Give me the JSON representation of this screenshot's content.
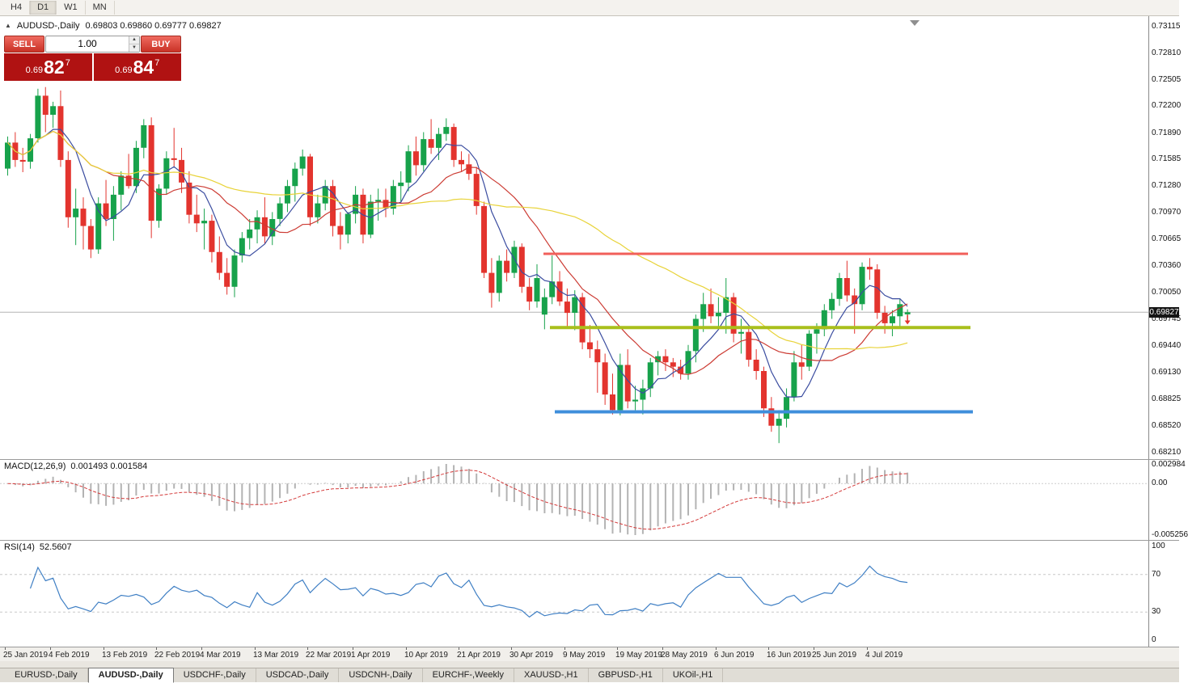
{
  "toolbar": {
    "timeframes": [
      {
        "label": "H4",
        "active": false
      },
      {
        "label": "D1",
        "active": true
      },
      {
        "label": "W1",
        "active": false
      },
      {
        "label": "MN",
        "active": false
      }
    ]
  },
  "chart": {
    "symbol": "AUDUSD-,Daily",
    "ohlc_line": "0.69803 0.69860 0.69777 0.69827",
    "current_price_label": "0.69827",
    "collapse_icon": "▲"
  },
  "one_click": {
    "sell_label": "SELL",
    "buy_label": "BUY",
    "volume": "1.00",
    "spin_up": "▲",
    "spin_down": "▼",
    "sell_price": {
      "small": "0.69",
      "big": "82",
      "sup": "7"
    },
    "buy_price": {
      "small": "0.69",
      "big": "84",
      "sup": "7"
    }
  },
  "chart_data": {
    "type": "candlestick",
    "symbol": "AUDUSD-,Daily",
    "timeframe": "Daily",
    "ohlc_current": {
      "open": 0.69803,
      "high": 0.6986,
      "low": 0.69777,
      "close": 0.69827
    },
    "current_price": 0.69827,
    "ylim": [
      0.6821,
      0.73115
    ],
    "y_ticks": [
      "0.73115",
      "0.72810",
      "0.72505",
      "0.72200",
      "0.71890",
      "0.71585",
      "0.71280",
      "0.70970",
      "0.70665",
      "0.70360",
      "0.70050",
      "0.69745",
      "0.69440",
      "0.69130",
      "0.68825",
      "0.68520",
      "0.68210"
    ],
    "x_labels": [
      {
        "label": "25 Jan 2019",
        "index": 0
      },
      {
        "label": "4 Feb 2019",
        "index": 6
      },
      {
        "label": "13 Feb 2019",
        "index": 13
      },
      {
        "label": "22 Feb 2019",
        "index": 20
      },
      {
        "label": "4 Mar 2019",
        "index": 26
      },
      {
        "label": "13 Mar 2019",
        "index": 33
      },
      {
        "label": "22 Mar 2019",
        "index": 40
      },
      {
        "label": "1 Apr 2019",
        "index": 46
      },
      {
        "label": "10 Apr 2019",
        "index": 53
      },
      {
        "label": "21 Apr 2019",
        "index": 60
      },
      {
        "label": "30 Apr 2019",
        "index": 67
      },
      {
        "label": "9 May 2019",
        "index": 74
      },
      {
        "label": "19 May 2019",
        "index": 81
      },
      {
        "label": "28 May 2019",
        "index": 87
      },
      {
        "label": "6 Jun 2019",
        "index": 94
      },
      {
        "label": "16 Jun 2019",
        "index": 101
      },
      {
        "label": "25 Jun 2019",
        "index": 107
      },
      {
        "label": "4 Jul 2019",
        "index": 114
      }
    ],
    "candles": [
      [
        0.7148,
        0.7185,
        0.714,
        0.7178
      ],
      [
        0.7178,
        0.719,
        0.715,
        0.7158
      ],
      [
        0.7158,
        0.7172,
        0.7144,
        0.7156
      ],
      [
        0.7156,
        0.7188,
        0.7148,
        0.7183
      ],
      [
        0.7183,
        0.724,
        0.7178,
        0.7232
      ],
      [
        0.7232,
        0.7242,
        0.719,
        0.721
      ],
      [
        0.721,
        0.7225,
        0.7195,
        0.722
      ],
      [
        0.722,
        0.7238,
        0.715,
        0.7158
      ],
      [
        0.7158,
        0.7168,
        0.708,
        0.7092
      ],
      [
        0.7092,
        0.7125,
        0.706,
        0.7102
      ],
      [
        0.7102,
        0.7115,
        0.7055,
        0.7082
      ],
      [
        0.7082,
        0.709,
        0.7045,
        0.7055
      ],
      [
        0.7055,
        0.7115,
        0.705,
        0.7108
      ],
      [
        0.7108,
        0.7135,
        0.7082,
        0.709
      ],
      [
        0.709,
        0.7128,
        0.7065,
        0.7118
      ],
      [
        0.7118,
        0.7145,
        0.71,
        0.714
      ],
      [
        0.714,
        0.7165,
        0.7125,
        0.7128
      ],
      [
        0.7128,
        0.718,
        0.712,
        0.7172
      ],
      [
        0.7172,
        0.7205,
        0.716,
        0.7198
      ],
      [
        0.7198,
        0.7207,
        0.7068,
        0.7088
      ],
      [
        0.7088,
        0.713,
        0.708,
        0.7125
      ],
      [
        0.7125,
        0.7168,
        0.7118,
        0.716
      ],
      [
        0.716,
        0.7195,
        0.715,
        0.7158
      ],
      [
        0.7158,
        0.7172,
        0.712,
        0.7132
      ],
      [
        0.7132,
        0.7145,
        0.7085,
        0.7095
      ],
      [
        0.7095,
        0.7118,
        0.7075,
        0.7085
      ],
      [
        0.7085,
        0.7102,
        0.7055,
        0.7088
      ],
      [
        0.7088,
        0.7095,
        0.704,
        0.7052
      ],
      [
        0.7052,
        0.707,
        0.702,
        0.7028
      ],
      [
        0.7028,
        0.7045,
        0.7003,
        0.7012
      ],
      [
        0.7012,
        0.7055,
        0.7,
        0.7048
      ],
      [
        0.7048,
        0.7075,
        0.704,
        0.7068
      ],
      [
        0.7068,
        0.709,
        0.7055,
        0.7078
      ],
      [
        0.7078,
        0.71,
        0.7062,
        0.7092
      ],
      [
        0.7092,
        0.7115,
        0.7062,
        0.707
      ],
      [
        0.707,
        0.7098,
        0.706,
        0.709
      ],
      [
        0.709,
        0.7115,
        0.7082,
        0.7108
      ],
      [
        0.7108,
        0.7135,
        0.7098,
        0.7128
      ],
      [
        0.7128,
        0.7155,
        0.711,
        0.7148
      ],
      [
        0.7148,
        0.717,
        0.714,
        0.7162
      ],
      [
        0.7162,
        0.7165,
        0.7082,
        0.7092
      ],
      [
        0.7092,
        0.7118,
        0.7085,
        0.7108
      ],
      [
        0.7108,
        0.7135,
        0.71,
        0.7128
      ],
      [
        0.7128,
        0.7135,
        0.707,
        0.7082
      ],
      [
        0.7082,
        0.7098,
        0.7055,
        0.7072
      ],
      [
        0.7072,
        0.7098,
        0.7062,
        0.7096
      ],
      [
        0.7096,
        0.7128,
        0.7085,
        0.7118
      ],
      [
        0.7118,
        0.7125,
        0.7062,
        0.7072
      ],
      [
        0.7072,
        0.7118,
        0.7068,
        0.711
      ],
      [
        0.711,
        0.7125,
        0.7088,
        0.7112
      ],
      [
        0.7112,
        0.7125,
        0.7092,
        0.7102
      ],
      [
        0.7102,
        0.7135,
        0.7095,
        0.7128
      ],
      [
        0.7128,
        0.7145,
        0.711,
        0.7132
      ],
      [
        0.7132,
        0.7175,
        0.7122,
        0.7168
      ],
      [
        0.7168,
        0.7185,
        0.714,
        0.7152
      ],
      [
        0.7152,
        0.719,
        0.7145,
        0.7182
      ],
      [
        0.7182,
        0.7205,
        0.7165,
        0.7172
      ],
      [
        0.7172,
        0.7195,
        0.7158,
        0.7188
      ],
      [
        0.7188,
        0.7206,
        0.718,
        0.7196
      ],
      [
        0.7196,
        0.72,
        0.715,
        0.7158
      ],
      [
        0.7158,
        0.7168,
        0.7145,
        0.7153
      ],
      [
        0.7153,
        0.7165,
        0.7135,
        0.7142
      ],
      [
        0.7142,
        0.715,
        0.7095,
        0.7105
      ],
      [
        0.7105,
        0.711,
        0.7022,
        0.7028
      ],
      [
        0.7028,
        0.7045,
        0.6988,
        0.7005
      ],
      [
        0.7005,
        0.7048,
        0.6995,
        0.7042
      ],
      [
        0.7042,
        0.7055,
        0.7018,
        0.7028
      ],
      [
        0.7028,
        0.7065,
        0.7022,
        0.7058
      ],
      [
        0.7058,
        0.7062,
        0.7005,
        0.7012
      ],
      [
        0.7012,
        0.7022,
        0.6985,
        0.6995
      ],
      [
        0.6995,
        0.7038,
        0.6988,
        0.7022
      ],
      [
        0.698,
        0.701,
        0.6963,
        0.7
      ],
      [
        0.7,
        0.7048,
        0.6992,
        0.7018
      ],
      [
        0.7018,
        0.703,
        0.699,
        0.6995
      ],
      [
        0.6995,
        0.701,
        0.6965,
        0.6982
      ],
      [
        0.6982,
        0.7008,
        0.6962,
        0.7
      ],
      [
        0.7,
        0.7005,
        0.694,
        0.6948
      ],
      [
        0.6948,
        0.6968,
        0.693,
        0.694
      ],
      [
        0.694,
        0.695,
        0.689,
        0.6925
      ],
      [
        0.6925,
        0.6935,
        0.6876,
        0.6888
      ],
      [
        0.6888,
        0.6912,
        0.6865,
        0.687
      ],
      [
        0.687,
        0.6935,
        0.6864,
        0.6922
      ],
      [
        0.6922,
        0.694,
        0.6872,
        0.688
      ],
      [
        0.688,
        0.6898,
        0.687,
        0.6882
      ],
      [
        0.6882,
        0.6905,
        0.6865,
        0.6895
      ],
      [
        0.6895,
        0.693,
        0.6885,
        0.6925
      ],
      [
        0.6925,
        0.6938,
        0.691,
        0.6932
      ],
      [
        0.6932,
        0.694,
        0.6915,
        0.6925
      ],
      [
        0.6925,
        0.693,
        0.6908,
        0.692
      ],
      [
        0.692,
        0.6928,
        0.6905,
        0.6912
      ],
      [
        0.6912,
        0.6945,
        0.6905,
        0.6938
      ],
      [
        0.6938,
        0.698,
        0.6925,
        0.6975
      ],
      [
        0.6975,
        0.7005,
        0.696,
        0.6992
      ],
      [
        0.6992,
        0.701,
        0.697,
        0.6978
      ],
      [
        0.6978,
        0.7,
        0.6965,
        0.6982
      ],
      [
        0.6982,
        0.7022,
        0.6958,
        0.7
      ],
      [
        0.7,
        0.7005,
        0.6948,
        0.6958
      ],
      [
        0.6958,
        0.6975,
        0.6935,
        0.696
      ],
      [
        0.696,
        0.6965,
        0.692,
        0.6928
      ],
      [
        0.6928,
        0.694,
        0.6905,
        0.6915
      ],
      [
        0.6915,
        0.692,
        0.6862,
        0.6872
      ],
      [
        0.6872,
        0.6885,
        0.6845,
        0.6852
      ],
      [
        0.6852,
        0.687,
        0.6832,
        0.686
      ],
      [
        0.686,
        0.6895,
        0.685,
        0.6885
      ],
      [
        0.6885,
        0.6938,
        0.688,
        0.6925
      ],
      [
        0.6925,
        0.6945,
        0.6905,
        0.692
      ],
      [
        0.692,
        0.6962,
        0.6915,
        0.6958
      ],
      [
        0.6958,
        0.697,
        0.6935,
        0.6963
      ],
      [
        0.6963,
        0.6992,
        0.6955,
        0.6985
      ],
      [
        0.6985,
        0.7005,
        0.6975,
        0.6998
      ],
      [
        0.6998,
        0.7028,
        0.699,
        0.7022
      ],
      [
        0.7022,
        0.7042,
        0.6995,
        0.7002
      ],
      [
        0.7002,
        0.701,
        0.6958,
        0.6992
      ],
      [
        0.6992,
        0.704,
        0.6985,
        0.7035
      ],
      [
        0.7035,
        0.7045,
        0.702,
        0.7032
      ],
      [
        0.7032,
        0.7038,
        0.6975,
        0.6982
      ],
      [
        0.6982,
        0.699,
        0.6958,
        0.697
      ],
      [
        0.697,
        0.6985,
        0.6955,
        0.6978
      ],
      [
        0.6978,
        0.6998,
        0.6965,
        0.6992
      ],
      [
        0.69803,
        0.6986,
        0.69777,
        0.69827
      ]
    ],
    "moving_averages": [
      {
        "period": 6,
        "color": "#3b4da0"
      },
      {
        "period": 14,
        "color": "#cc3b33"
      },
      {
        "period": 40,
        "color": "#e8d339"
      }
    ],
    "levels": [
      {
        "name": "resistance-line-red",
        "color": "#f15f5a",
        "price": 0.705,
        "x1": 672,
        "x2": 1197,
        "width": 3
      },
      {
        "name": "support-line-olive",
        "color": "#a9bf1c",
        "price": 0.6965,
        "x1": 680,
        "x2": 1200,
        "width": 4
      },
      {
        "name": "support-line-blue",
        "color": "#3f8edb",
        "price": 0.6868,
        "x1": 686,
        "x2": 1203,
        "width": 4
      }
    ],
    "bull_color": "#17a24b",
    "bear_color": "#e3342e",
    "marker_color": "#e3342e",
    "price_line_color": "#b4b4b4"
  },
  "macd": {
    "name": "MACD(12,26,9)",
    "values": "0.001493 0.001584",
    "fast": 12,
    "slow": 26,
    "signal": 9,
    "scale": {
      "top": "0.002984",
      "zero": "0.00",
      "bottom": "-0.005256"
    },
    "hist_color": "#b3b3b3",
    "signal_color": "#d43a3a"
  },
  "rsi": {
    "name": "RSI(14)",
    "value": "52.5607",
    "period": 14,
    "scale": [
      "100",
      "70",
      "30",
      "0"
    ],
    "levels": [
      70,
      30
    ],
    "line_color": "#3f7fc4",
    "level_color": "#c8c8c8"
  },
  "tabs": [
    {
      "label": "EURUSD-,Daily",
      "active": false
    },
    {
      "label": "AUDUSD-,Daily",
      "active": true
    },
    {
      "label": "USDCHF-,Daily",
      "active": false
    },
    {
      "label": "USDCAD-,Daily",
      "active": false
    },
    {
      "label": "USDCNH-,Daily",
      "active": false
    },
    {
      "label": "EURCHF-,Weekly",
      "active": false
    },
    {
      "label": "XAUUSD-,H1",
      "active": false
    },
    {
      "label": "GBPUSD-,H1",
      "active": false
    },
    {
      "label": "UKOil-,H1",
      "active": false
    }
  ]
}
